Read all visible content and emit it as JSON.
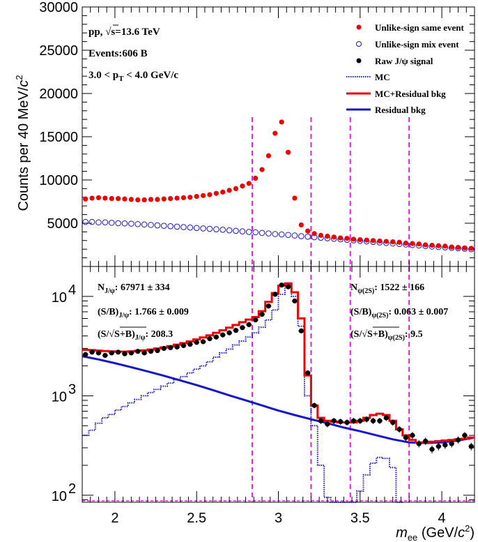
{
  "chart_data": [
    {
      "type": "scatter",
      "panel": "top",
      "xlim": [
        1.8,
        4.2
      ],
      "ylim": [
        0,
        30000
      ],
      "ylabel": "Counts per 40 MeV/c²",
      "ylabel_main": "Counts per 40 MeV/",
      "ylabel_c": "c",
      "ylabel_exp": "2",
      "y_ticks": [
        5000,
        10000,
        15000,
        20000,
        25000,
        30000
      ],
      "y_tick_labels": [
        "5000",
        "10000",
        "15000",
        "20000",
        "25000",
        "30000"
      ],
      "info": {
        "line1_pre": "pp, ",
        "line1_sqrt": "√s",
        "line1_post": "=13.6 TeV",
        "line2": "Events:606 B",
        "line3_pre": "3.0 < p",
        "line3_sub": "T",
        "line3_post": " < 4.0 GeV/c"
      },
      "legend": [
        {
          "label": "Unlike-sign same event",
          "style": "red-dot"
        },
        {
          "label": "Unlike-sign mix event",
          "style": "blue-open-circle"
        },
        {
          "label": "Raw J/ψ signal",
          "style": "black-dot"
        },
        {
          "label": "MC",
          "style": "blue-dotted-line"
        },
        {
          "label": "MC+Residual bkg",
          "style": "red-line"
        },
        {
          "label": "Residual bkg",
          "style": "blue-line"
        }
      ],
      "vlines": [
        2.84,
        3.2,
        3.44,
        3.8
      ],
      "series": [
        {
          "name": "Unlike-sign same event",
          "x": [
            1.82,
            1.86,
            1.9,
            1.94,
            1.98,
            2.02,
            2.06,
            2.1,
            2.14,
            2.18,
            2.22,
            2.26,
            2.3,
            2.34,
            2.38,
            2.42,
            2.46,
            2.5,
            2.54,
            2.58,
            2.62,
            2.66,
            2.7,
            2.74,
            2.78,
            2.82,
            2.86,
            2.9,
            2.94,
            2.98,
            3.02,
            3.06,
            3.1,
            3.14,
            3.18,
            3.22,
            3.26,
            3.3,
            3.34,
            3.38,
            3.42,
            3.46,
            3.5,
            3.54,
            3.58,
            3.62,
            3.66,
            3.7,
            3.74,
            3.78,
            3.82,
            3.86,
            3.9,
            3.94,
            3.98,
            4.02,
            4.06,
            4.1,
            4.14,
            4.18
          ],
          "values": [
            7800,
            7900,
            7950,
            7900,
            7850,
            7850,
            7800,
            7750,
            7700,
            7700,
            7750,
            7750,
            7800,
            7850,
            7900,
            7950,
            8000,
            8100,
            8200,
            8300,
            8450,
            8600,
            8800,
            9000,
            9300,
            9600,
            10200,
            11200,
            12800,
            15400,
            16700,
            13200,
            7900,
            4800,
            4100,
            3800,
            3600,
            3500,
            3400,
            3300,
            3250,
            3150,
            3100,
            3050,
            3000,
            2950,
            2900,
            2850,
            2800,
            2700,
            2650,
            2600,
            2500,
            2450,
            2400,
            2350,
            2250,
            2200,
            2150,
            2100
          ]
        },
        {
          "name": "Unlike-sign mix event",
          "x": [
            1.82,
            1.86,
            1.9,
            1.94,
            1.98,
            2.02,
            2.06,
            2.1,
            2.14,
            2.18,
            2.22,
            2.26,
            2.3,
            2.34,
            2.38,
            2.42,
            2.46,
            2.5,
            2.54,
            2.58,
            2.62,
            2.66,
            2.7,
            2.74,
            2.78,
            2.82,
            2.86,
            2.9,
            2.94,
            2.98,
            3.02,
            3.06,
            3.1,
            3.14,
            3.18,
            3.22,
            3.26,
            3.3,
            3.34,
            3.38,
            3.42,
            3.46,
            3.5,
            3.54,
            3.58,
            3.62,
            3.66,
            3.7,
            3.74,
            3.78,
            3.82,
            3.86,
            3.9,
            3.94,
            3.98,
            4.02,
            4.06,
            4.1,
            4.14,
            4.18
          ],
          "values": [
            5150,
            5150,
            5100,
            5100,
            5050,
            5000,
            4980,
            4950,
            4900,
            4850,
            4800,
            4750,
            4700,
            4650,
            4600,
            4550,
            4500,
            4450,
            4400,
            4350,
            4300,
            4250,
            4180,
            4120,
            4060,
            4000,
            3950,
            3880,
            3820,
            3750,
            3700,
            3650,
            3580,
            3500,
            3440,
            3380,
            3320,
            3260,
            3200,
            3140,
            3080,
            3020,
            2960,
            2900,
            2840,
            2780,
            2720,
            2660,
            2600,
            2540,
            2480,
            2420,
            2360,
            2300,
            2250,
            2200,
            2150,
            2100,
            2050,
            2000
          ]
        }
      ]
    },
    {
      "type": "scatter",
      "panel": "bottom",
      "yscale": "log",
      "xlim": [
        1.8,
        4.2
      ],
      "ylim": [
        85,
        20000
      ],
      "xlabel": "m_ee (GeV/c²)",
      "xlabel_m": "m",
      "xlabel_sub": "ee",
      "xlabel_unit_pre": " (GeV/",
      "xlabel_unit_c": "c",
      "xlabel_unit_exp": "2",
      "xlabel_unit_post": ")",
      "x_ticks": [
        2,
        2.5,
        3,
        3.5,
        4
      ],
      "x_tick_labels": [
        "2",
        "2.5",
        "3",
        "3.5",
        "4"
      ],
      "y_ticks": [
        100,
        1000,
        10000
      ],
      "y_tick_bases": [
        "10",
        "10",
        "10"
      ],
      "y_tick_exps": [
        "2",
        "3",
        "4"
      ],
      "annotations_jpsi": {
        "n_pre": "N",
        "n_sub": "J/ψ",
        "n_post": ": 67971 ± 334",
        "sb_pre": "(S/B)",
        "sb_sub": "J/ψ",
        "sb_post": ": 1.766 ± 0.009",
        "sig_pre": "(S/",
        "sig_rad": "S+B)",
        "sig_sub": "J/ψ",
        "sig_post": ": 208.3"
      },
      "annotations_psi2s": {
        "n_pre": "N",
        "n_sub": "ψ(2S)",
        "n_post": ": 1522 ± 166",
        "sb_pre": "(S/B)",
        "sb_sub": "ψ(2S)",
        "sb_post": ": 0.063 ± 0.007",
        "sig_pre": "(S/",
        "sig_rad": "S+B)",
        "sig_sub": "ψ(2S)",
        "sig_post": ":   9.5"
      },
      "vlines": [
        2.84,
        3.2,
        3.44,
        3.8
      ],
      "series": [
        {
          "name": "Raw J/ψ signal",
          "x": [
            1.82,
            1.86,
            1.9,
            1.94,
            1.98,
            2.02,
            2.06,
            2.1,
            2.14,
            2.18,
            2.22,
            2.26,
            2.3,
            2.34,
            2.38,
            2.42,
            2.46,
            2.5,
            2.54,
            2.58,
            2.62,
            2.66,
            2.7,
            2.74,
            2.78,
            2.82,
            2.86,
            2.9,
            2.94,
            2.98,
            3.02,
            3.06,
            3.1,
            3.14,
            3.18,
            3.22,
            3.26,
            3.3,
            3.34,
            3.38,
            3.42,
            3.46,
            3.5,
            3.54,
            3.58,
            3.62,
            3.66,
            3.7,
            3.74,
            3.78,
            3.82,
            3.86,
            3.9,
            3.94,
            3.98,
            4.02,
            4.06,
            4.1,
            4.14,
            4.18
          ],
          "values": [
            2600,
            2750,
            2700,
            2550,
            2700,
            2750,
            2650,
            2700,
            2800,
            2700,
            2800,
            2850,
            3000,
            3050,
            3100,
            3200,
            3300,
            3450,
            3500,
            3750,
            3900,
            4100,
            4300,
            4550,
            4850,
            5200,
            5800,
            6600,
            8000,
            10500,
            13000,
            12500,
            9000,
            4500,
            1700,
            800,
            560,
            520,
            560,
            550,
            540,
            560,
            560,
            580,
            560,
            560,
            600,
            540,
            460,
            380,
            400,
            330,
            350,
            290,
            310,
            320,
            330,
            360,
            400,
            310
          ]
        },
        {
          "name": "MC",
          "step": true,
          "x": [
            1.8,
            1.84,
            1.88,
            1.92,
            1.96,
            2.0,
            2.04,
            2.08,
            2.12,
            2.16,
            2.2,
            2.24,
            2.28,
            2.32,
            2.36,
            2.4,
            2.44,
            2.48,
            2.52,
            2.56,
            2.6,
            2.64,
            2.68,
            2.72,
            2.76,
            2.8,
            2.84,
            2.88,
            2.92,
            2.96,
            3.0,
            3.04,
            3.08,
            3.12,
            3.16,
            3.2,
            3.24,
            3.28,
            3.32,
            3.36,
            3.4,
            3.44,
            3.48,
            3.52,
            3.56,
            3.6,
            3.64,
            3.68,
            3.72
          ],
          "values": [
            400,
            450,
            530,
            600,
            650,
            720,
            780,
            850,
            920,
            1000,
            1080,
            1160,
            1250,
            1340,
            1450,
            1560,
            1700,
            1850,
            2000,
            2200,
            2450,
            2700,
            2950,
            3250,
            3550,
            3900,
            4300,
            4900,
            5800,
            7300,
            10500,
            13000,
            10000,
            5000,
            1000,
            500,
            200,
            95,
            85,
            85,
            85,
            85,
            110,
            160,
            210,
            240,
            235,
            190,
            85
          ]
        },
        {
          "name": "MC+Residual bkg",
          "step": true,
          "x": [
            1.8,
            1.84,
            1.88,
            1.92,
            1.96,
            2.0,
            2.04,
            2.08,
            2.12,
            2.16,
            2.2,
            2.24,
            2.28,
            2.32,
            2.36,
            2.4,
            2.44,
            2.48,
            2.52,
            2.56,
            2.6,
            2.64,
            2.68,
            2.72,
            2.76,
            2.8,
            2.84,
            2.88,
            2.92,
            2.96,
            3.0,
            3.04,
            3.08,
            3.12,
            3.16,
            3.2,
            3.24,
            3.28,
            3.32,
            3.36,
            3.4,
            3.44,
            3.48,
            3.52,
            3.56,
            3.6,
            3.64,
            3.68,
            3.72,
            3.76,
            3.8,
            3.84,
            3.88,
            3.92,
            3.96,
            4.0,
            4.04,
            4.08,
            4.12,
            4.16
          ],
          "values": [
            2900,
            2880,
            2850,
            2820,
            2800,
            2780,
            2780,
            2800,
            2830,
            2870,
            2920,
            2990,
            3070,
            3160,
            3270,
            3390,
            3530,
            3690,
            3860,
            4060,
            4300,
            4560,
            4850,
            5160,
            5500,
            5850,
            6200,
            7100,
            8800,
            10800,
            12800,
            13500,
            11000,
            6000,
            1600,
            800,
            600,
            560,
            550,
            540,
            540,
            540,
            560,
            600,
            640,
            660,
            640,
            560,
            460,
            400,
            360,
            340,
            340,
            345,
            350,
            355,
            360,
            365,
            370,
            380
          ]
        },
        {
          "name": "Residual bkg",
          "x": [
            1.8,
            1.9,
            2.0,
            2.1,
            2.2,
            2.3,
            2.4,
            2.5,
            2.6,
            2.7,
            2.8,
            2.9,
            3.0,
            3.1,
            3.2,
            3.3,
            3.4,
            3.5,
            3.6,
            3.7,
            3.8,
            3.9,
            4.0,
            4.1,
            4.2
          ],
          "values": [
            2500,
            2320,
            2130,
            1940,
            1760,
            1590,
            1430,
            1280,
            1140,
            1010,
            900,
            800,
            710,
            640,
            580,
            530,
            480,
            440,
            400,
            365,
            340,
            335,
            340,
            355,
            380
          ]
        }
      ]
    }
  ]
}
